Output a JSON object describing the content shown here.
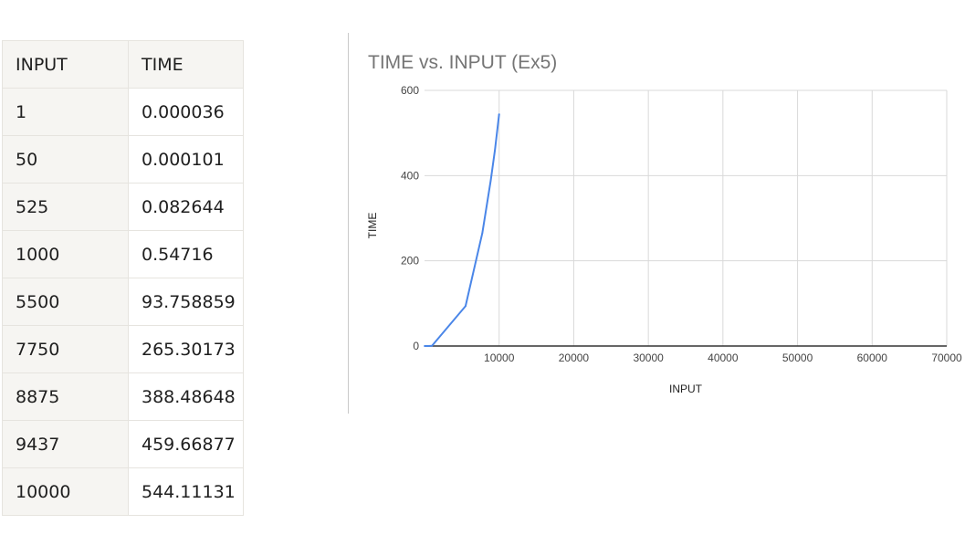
{
  "table": {
    "headers": [
      "INPUT",
      "TIME"
    ],
    "rows": [
      [
        "1",
        "0.000036"
      ],
      [
        "50",
        "0.000101"
      ],
      [
        "525",
        "0.082644"
      ],
      [
        "1000",
        "0.54716"
      ],
      [
        "5500",
        "93.758859"
      ],
      [
        "7750",
        "265.30173"
      ],
      [
        "8875",
        "388.48648"
      ],
      [
        "9437",
        "459.66877"
      ],
      [
        "10000",
        "544.11131"
      ]
    ]
  },
  "chart_data": {
    "type": "line",
    "title": "TIME vs. INPUT (Ex5)",
    "xlabel": "INPUT",
    "ylabel": "TIME",
    "xlim": [
      0,
      70000
    ],
    "ylim": [
      0,
      600
    ],
    "x_ticks": [
      10000,
      20000,
      30000,
      40000,
      50000,
      60000,
      70000
    ],
    "y_ticks": [
      0,
      200,
      400,
      600
    ],
    "grid": true,
    "series": [
      {
        "color": "#4a86e8",
        "x": [
          1,
          50,
          525,
          1000,
          5500,
          7750,
          8875,
          9437,
          10000
        ],
        "y": [
          3.6e-05,
          0.000101,
          0.082644,
          0.54716,
          93.758859,
          265.30173,
          388.48648,
          459.66877,
          544.11131
        ]
      }
    ]
  }
}
